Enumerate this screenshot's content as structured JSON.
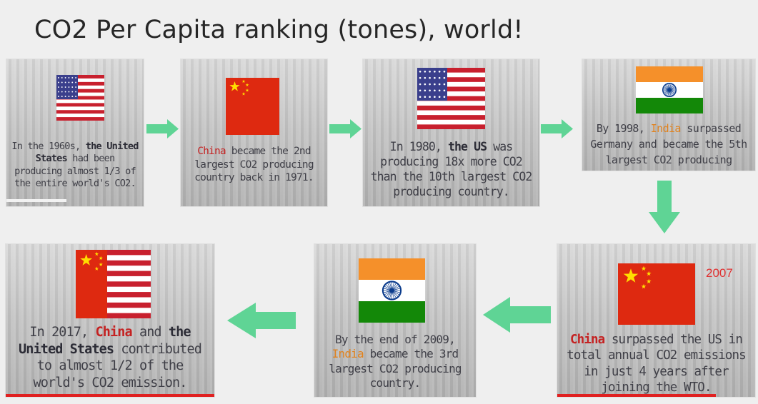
{
  "title": "CO2 Per Capita ranking (tones), world!",
  "colors": {
    "arrow": "#5fd495",
    "us_red": "#c8202e",
    "us_blue": "#3a3f8c",
    "china_red": "#de2910",
    "china_star": "#ffde00",
    "india_saffron": "#f5902a",
    "india_green": "#138808",
    "india_chakra": "#0a3b8c",
    "accent_red": "#e02020",
    "year_note": "#e03030"
  },
  "cards": [
    {
      "id": "1960s",
      "flag": "us-flag-icon",
      "parts": [
        "In the 1960s, ",
        "the United States",
        " had been producing almost 1/3 of the entire world's CO2."
      ]
    },
    {
      "id": "1971",
      "flag": "china-flag-icon",
      "parts": [
        "China",
        " became the 2nd largest CO2 producing country back in 1971."
      ]
    },
    {
      "id": "1980",
      "flag": "us-flag-icon",
      "parts": [
        "In 1980, ",
        "the US",
        " was producing 18x more CO2 than the 10th largest CO2 producing country."
      ]
    },
    {
      "id": "1998",
      "flag": "india-flag-icon",
      "parts": [
        "By 1998, ",
        "India",
        " surpassed Germany and became the 5th largest CO2 producing country."
      ]
    },
    {
      "id": "2007",
      "flag": "china-flag-icon",
      "parts": [
        "China",
        " surpassed the US in total annual CO2 emissions in just 4 years after joining the WTO."
      ]
    },
    {
      "id": "2009",
      "flag": "india-flag-icon",
      "parts": [
        "By the end of 2009, ",
        "India",
        " became the 3rd largest CO2 producing country."
      ]
    },
    {
      "id": "2017",
      "flag": "china-us-flag-icon",
      "parts": [
        "In 2017, ",
        "China",
        " and ",
        "the United States",
        " contributed to almost 1/2 of the world's CO2 emission."
      ]
    }
  ],
  "year_note": "2007"
}
